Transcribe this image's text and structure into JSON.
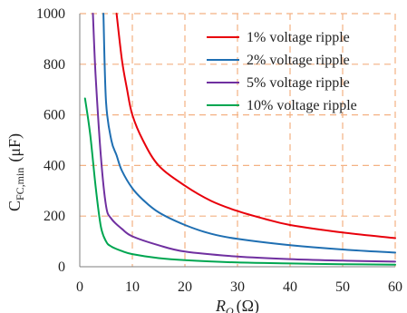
{
  "chart_data": {
    "type": "line",
    "xlabel_main": "R",
    "xlabel_sub": "O",
    "xlabel_unit": "(Ω)",
    "ylabel_main": "C",
    "ylabel_sub": "FC,min",
    "ylabel_unit": "(μF)",
    "xlim": [
      0,
      60
    ],
    "ylim": [
      0,
      1000
    ],
    "xticks": [
      0,
      10,
      20,
      30,
      40,
      50,
      60
    ],
    "yticks": [
      0,
      200,
      400,
      600,
      800,
      1000
    ],
    "xtick_labels": [
      "0",
      "10",
      "20",
      "30",
      "40",
      "50",
      "60"
    ],
    "ytick_labels": [
      "0",
      "200",
      "400",
      "600",
      "800",
      "1000"
    ],
    "grid": "dashed",
    "legend_position": "top-right",
    "series": [
      {
        "name": "1% voltage ripple",
        "color": "#e8000b",
        "x": [
          7,
          8,
          9,
          10,
          12,
          15,
          20,
          25,
          30,
          35,
          40,
          50,
          60
        ],
        "y": [
          1000,
          820,
          700,
          600,
          500,
          400,
          320,
          260,
          220,
          190,
          165,
          135,
          113
        ]
      },
      {
        "name": "2% voltage ripple",
        "color": "#1f6fb2",
        "x": [
          4.5,
          5,
          6,
          7,
          8,
          10,
          12,
          15,
          20,
          25,
          30,
          40,
          50,
          60
        ],
        "y": [
          1000,
          650,
          500,
          440,
          380,
          310,
          265,
          215,
          165,
          130,
          110,
          85,
          68,
          56
        ]
      },
      {
        "name": "5% voltage ripple",
        "color": "#7030a0",
        "x": [
          2.5,
          3,
          4,
          5,
          6,
          8,
          10,
          15,
          20,
          30,
          40,
          50,
          60
        ],
        "y": [
          1000,
          760,
          440,
          240,
          190,
          150,
          120,
          85,
          60,
          40,
          30,
          24,
          20
        ]
      },
      {
        "name": "10% voltage ripple",
        "color": "#00a651",
        "x": [
          1,
          2,
          3,
          4,
          5,
          6,
          8,
          10,
          15,
          20,
          30,
          40,
          50,
          60
        ],
        "y": [
          665,
          520,
          320,
          160,
          100,
          80,
          62,
          50,
          34,
          26,
          17,
          13,
          10,
          8
        ]
      }
    ]
  }
}
